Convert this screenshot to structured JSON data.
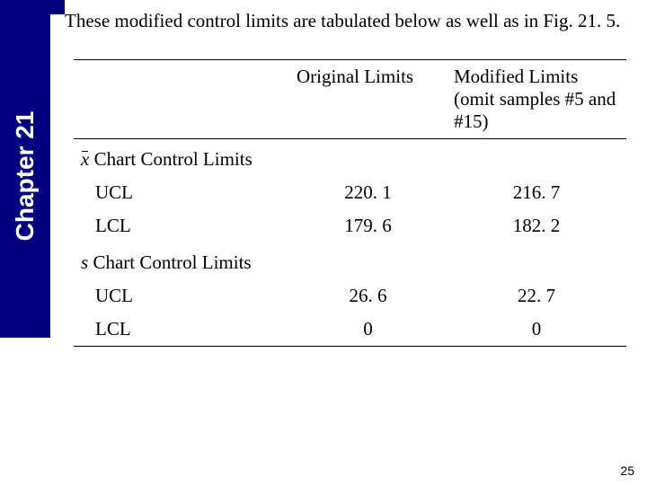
{
  "sidebar": {
    "label": "Chapter 21"
  },
  "intro": "These modified control limits are tabulated below as well as in Fig. 21. 5.",
  "table": {
    "headers": {
      "col1": "",
      "col2": "Original Limits",
      "col3": "Modified Limits (omit samples #5 and #15)"
    },
    "section1": {
      "xbar_symbol": "x",
      "title_rest": " Chart Control Limits",
      "rows": [
        {
          "label": "UCL",
          "orig": "220. 1",
          "mod": "216. 7"
        },
        {
          "label": "LCL",
          "orig": "179. 6",
          "mod": "182. 2"
        }
      ]
    },
    "section2": {
      "s_symbol": "s",
      "title_rest": " Chart Control Limits",
      "rows": [
        {
          "label": "UCL",
          "orig": "26. 6",
          "mod": "22. 7"
        },
        {
          "label": "LCL",
          "orig": "0",
          "mod": "0"
        }
      ]
    }
  },
  "page_number": "25",
  "colors": {
    "sidebar_bg": "#000080",
    "sidebar_text": "#ffffff",
    "body_text": "#000000",
    "background": "#ffffff",
    "rule": "#000000"
  }
}
